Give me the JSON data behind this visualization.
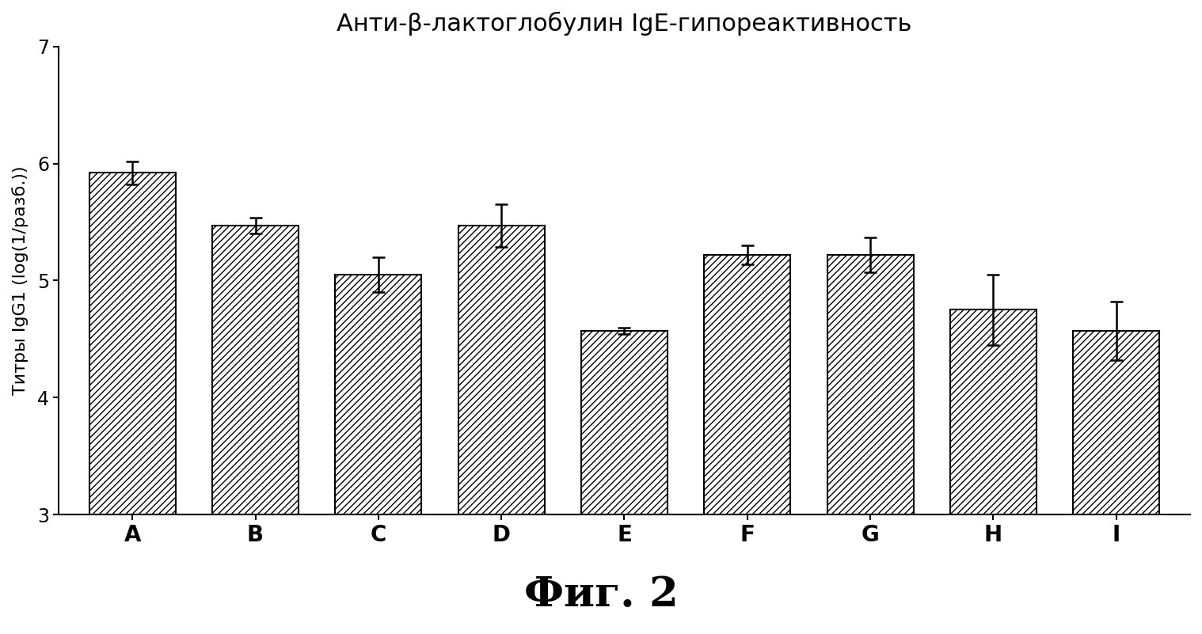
{
  "title": "Анти-β-лактоглобулин IgE-гипореактивность",
  "ylabel": "Титры IgG1 (log(1/разб.))",
  "caption": "Фиг. 2",
  "categories": [
    "A",
    "B",
    "C",
    "D",
    "E",
    "F",
    "G",
    "H",
    "I"
  ],
  "values": [
    5.92,
    5.47,
    5.05,
    5.47,
    4.57,
    5.22,
    5.22,
    4.75,
    4.57
  ],
  "errors": [
    0.1,
    0.07,
    0.15,
    0.18,
    0.03,
    0.08,
    0.15,
    0.3,
    0.25
  ],
  "ylim": [
    3,
    7
  ],
  "yticks": [
    3,
    4,
    5,
    6,
    7
  ],
  "bar_color": "#ffffff",
  "hatch_pattern": "////",
  "background_color": "#ffffff",
  "title_fontsize": 22,
  "ylabel_fontsize": 16,
  "xtick_fontsize": 20,
  "ytick_fontsize": 17,
  "caption_fontsize": 38,
  "bar_width": 0.7,
  "figsize": [
    15.18,
    8.01
  ],
  "dpi": 100
}
